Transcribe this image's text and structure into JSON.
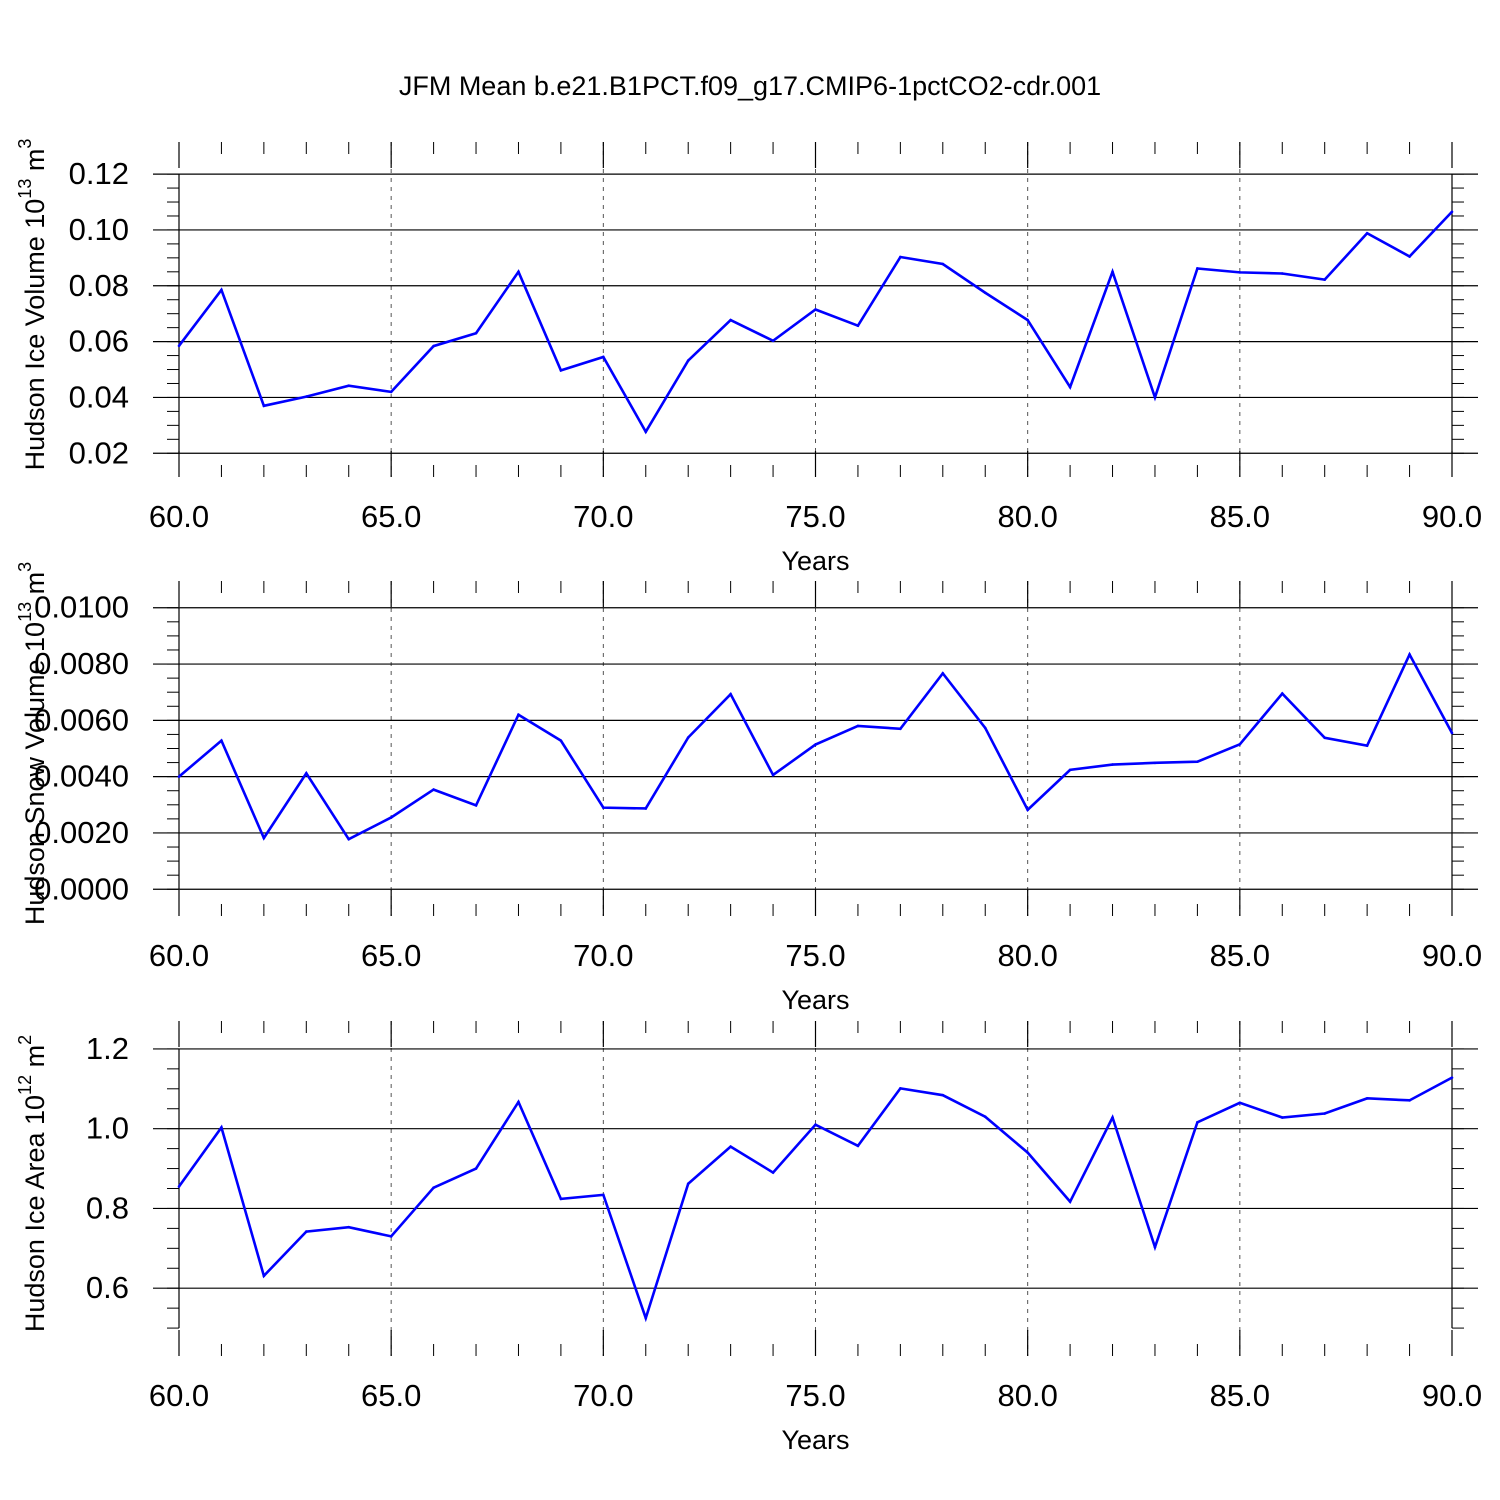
{
  "title": "JFM Mean b.e21.B1PCT.f09_g17.CMIP6-1pctCO2-cdr.001",
  "colors": {
    "series": "#0000ff",
    "axis": "#000000",
    "grid": "#555555"
  },
  "chart_data": [
    {
      "type": "line",
      "ylabel": {
        "main": "Hudson Ice Volume 10",
        "sup": "13",
        "unit": " m",
        "unit_sup": "3"
      },
      "xlabel": "Years",
      "xlim": [
        60,
        90
      ],
      "ylim": [
        0.0115,
        0.1315
      ],
      "yticks": [
        0.02,
        0.04,
        0.06,
        0.08,
        0.1,
        0.12
      ],
      "ytick_labels": [
        "0.02",
        "0.04",
        "0.06",
        "0.08",
        "0.10",
        "0.12"
      ],
      "ytick_axis_range": [
        0.02,
        0.12
      ],
      "y_minor_step": 0.005,
      "xticks": [
        60,
        65,
        70,
        75,
        80,
        85,
        90
      ],
      "xtick_labels": [
        "60.0",
        "65.0",
        "70.0",
        "75.0",
        "80.0",
        "85.0",
        "90.0"
      ],
      "grid": "vertical-dashed",
      "x": [
        60,
        61,
        62,
        63,
        64,
        65,
        66,
        67,
        68,
        69,
        70,
        71,
        72,
        73,
        74,
        75,
        76,
        77,
        78,
        79,
        80,
        81,
        82,
        83,
        84,
        85,
        86,
        87,
        88,
        89,
        90
      ],
      "series": [
        {
          "values": [
            0.0585,
            0.0785,
            0.037,
            0.0403,
            0.0442,
            0.042,
            0.0584,
            0.063,
            0.085,
            0.0497,
            0.0545,
            0.0277,
            0.0532,
            0.0677,
            0.0603,
            0.0715,
            0.0657,
            0.0903,
            0.0878,
            0.0775,
            0.0677,
            0.0437,
            0.085,
            0.04,
            0.0862,
            0.0848,
            0.0844,
            0.0822,
            0.0988,
            0.0905,
            0.1065
          ]
        }
      ]
    },
    {
      "type": "line",
      "ylabel": {
        "main": "Hudson Snow Volume 10",
        "sup": "13",
        "unit": " m",
        "unit_sup": "3"
      },
      "xlabel": "Years",
      "xlim": [
        60,
        90
      ],
      "ylim": [
        -0.00095,
        0.01095
      ],
      "yticks": [
        0.0,
        0.002,
        0.004,
        0.006,
        0.008,
        0.01
      ],
      "ytick_labels": [
        "0.0000",
        "0.0020",
        "0.0040",
        "0.0060",
        "0.0080",
        "0.0100"
      ],
      "ytick_axis_range": [
        0.0,
        0.01
      ],
      "y_minor_step": 0.0005,
      "xticks": [
        60,
        65,
        70,
        75,
        80,
        85,
        90
      ],
      "xtick_labels": [
        "60.0",
        "65.0",
        "70.0",
        "75.0",
        "80.0",
        "85.0",
        "90.0"
      ],
      "grid": "vertical-dashed",
      "x": [
        60,
        61,
        62,
        63,
        64,
        65,
        66,
        67,
        68,
        69,
        70,
        71,
        72,
        73,
        74,
        75,
        76,
        77,
        78,
        79,
        80,
        81,
        82,
        83,
        84,
        85,
        86,
        87,
        88,
        89,
        90
      ],
      "series": [
        {
          "values": [
            0.004,
            0.00528,
            0.00182,
            0.00412,
            0.00178,
            0.00255,
            0.00354,
            0.00298,
            0.0062,
            0.00528,
            0.0029,
            0.00287,
            0.00539,
            0.00693,
            0.00406,
            0.00514,
            0.0058,
            0.0057,
            0.00767,
            0.00573,
            0.00282,
            0.00424,
            0.00443,
            0.00449,
            0.00453,
            0.00515,
            0.00695,
            0.00538,
            0.0051,
            0.00834,
            0.00555
          ]
        }
      ]
    },
    {
      "type": "line",
      "ylabel": {
        "main": "Hudson Ice Area 10",
        "sup": "12",
        "unit": " m",
        "unit_sup": "2"
      },
      "xlabel": "Years",
      "xlim": [
        60,
        90
      ],
      "ylim": [
        0.43,
        1.27
      ],
      "yticks": [
        0.6,
        0.8,
        1.0,
        1.2
      ],
      "ytick_labels": [
        "0.6",
        "0.8",
        "1.0",
        "1.2"
      ],
      "ytick_axis_range": [
        0.5,
        1.2
      ],
      "y_minor_step": 0.05,
      "xticks": [
        60,
        65,
        70,
        75,
        80,
        85,
        90
      ],
      "xtick_labels": [
        "60.0",
        "65.0",
        "70.0",
        "75.0",
        "80.0",
        "85.0",
        "90.0"
      ],
      "grid": "vertical-dashed",
      "x": [
        60,
        61,
        62,
        63,
        64,
        65,
        66,
        67,
        68,
        69,
        70,
        71,
        72,
        73,
        74,
        75,
        76,
        77,
        78,
        79,
        80,
        81,
        82,
        83,
        84,
        85,
        86,
        87,
        88,
        89,
        90
      ],
      "series": [
        {
          "values": [
            0.855,
            1.003,
            0.631,
            0.742,
            0.753,
            0.73,
            0.852,
            0.9,
            1.067,
            0.824,
            0.834,
            0.525,
            0.862,
            0.955,
            0.89,
            1.01,
            0.957,
            1.101,
            1.084,
            1.03,
            0.94,
            0.817,
            1.028,
            0.703,
            1.016,
            1.065,
            1.028,
            1.038,
            1.076,
            1.071,
            1.128
          ]
        }
      ]
    }
  ]
}
